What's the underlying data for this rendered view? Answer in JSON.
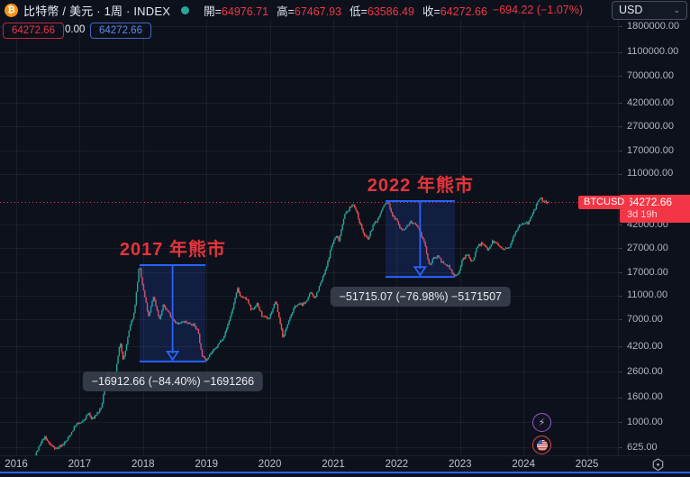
{
  "header": {
    "symbol_icon": "₿",
    "title": "比特幣 / 美元 · 1周 · INDEX",
    "ohlc": [
      {
        "label": "開",
        "value": "64976.71"
      },
      {
        "label": "高",
        "value": "67467.93"
      },
      {
        "label": "低",
        "value": "63586.49"
      },
      {
        "label": "收",
        "value": "64272.66"
      }
    ],
    "change": "−694.22 (−1.07%)",
    "currency": "USD",
    "currency_chevron": "⌄"
  },
  "badges": {
    "red_price": "64272.66",
    "middle_value": "0.00",
    "blue_price": "64272.66"
  },
  "price_scale": {
    "tag_price": "64272.66",
    "tag_countdown": "3d 19h",
    "symbol_tag": "BTCUSD",
    "ticks": [
      1800000,
      1100000,
      700000,
      420000,
      270000,
      170000,
      110000,
      42000,
      27000,
      17000,
      11000,
      7000,
      4200,
      2600,
      1600,
      1000,
      625
    ]
  },
  "time_scale": {
    "years": [
      2016,
      2017,
      2018,
      2019,
      2020,
      2021,
      2022,
      2023,
      2024,
      2025
    ]
  },
  "chart_data": {
    "type": "candlestick",
    "symbol": "BTCUSD",
    "timeframe": "1W",
    "scale": "log",
    "current_price": 64272.66,
    "price_axis_range": [
      625,
      1800000
    ],
    "time_axis_range": [
      2016,
      2025.6
    ],
    "anchors": [
      [
        2016.0,
        430
      ],
      [
        2016.08,
        370
      ],
      [
        2016.2,
        415
      ],
      [
        2016.45,
        760
      ],
      [
        2016.55,
        650
      ],
      [
        2016.65,
        610
      ],
      [
        2016.8,
        700
      ],
      [
        2016.95,
        960
      ],
      [
        2017.05,
        1000
      ],
      [
        2017.15,
        1200
      ],
      [
        2017.2,
        1050
      ],
      [
        2017.35,
        1300
      ],
      [
        2017.45,
        2700
      ],
      [
        2017.54,
        1900
      ],
      [
        2017.65,
        4600
      ],
      [
        2017.7,
        3200
      ],
      [
        2017.8,
        6000
      ],
      [
        2017.87,
        8000
      ],
      [
        2017.95,
        19500
      ],
      [
        2018.0,
        13500
      ],
      [
        2018.1,
        7200
      ],
      [
        2018.17,
        11000
      ],
      [
        2018.27,
        7000
      ],
      [
        2018.33,
        9200
      ],
      [
        2018.45,
        7500
      ],
      [
        2018.55,
        6400
      ],
      [
        2018.65,
        6700
      ],
      [
        2018.8,
        6400
      ],
      [
        2018.88,
        5600
      ],
      [
        2018.93,
        3700
      ],
      [
        2018.99,
        3200
      ],
      [
        2019.05,
        3600
      ],
      [
        2019.15,
        4000
      ],
      [
        2019.3,
        5300
      ],
      [
        2019.42,
        8500
      ],
      [
        2019.5,
        12500
      ],
      [
        2019.55,
        10800
      ],
      [
        2019.65,
        10200
      ],
      [
        2019.72,
        8200
      ],
      [
        2019.8,
        9500
      ],
      [
        2019.9,
        7300
      ],
      [
        2020.0,
        7200
      ],
      [
        2020.1,
        10000
      ],
      [
        2020.22,
        4900
      ],
      [
        2020.3,
        6900
      ],
      [
        2020.42,
        9200
      ],
      [
        2020.55,
        9400
      ],
      [
        2020.65,
        11500
      ],
      [
        2020.72,
        10600
      ],
      [
        2020.8,
        13500
      ],
      [
        2020.9,
        18500
      ],
      [
        2020.98,
        28000
      ],
      [
        2021.05,
        34000
      ],
      [
        2021.1,
        31500
      ],
      [
        2021.18,
        50000
      ],
      [
        2021.28,
        58500
      ],
      [
        2021.33,
        63000
      ],
      [
        2021.42,
        45000
      ],
      [
        2021.5,
        34000
      ],
      [
        2021.56,
        32000
      ],
      [
        2021.63,
        41000
      ],
      [
        2021.72,
        47500
      ],
      [
        2021.8,
        60000
      ],
      [
        2021.87,
        65000
      ],
      [
        2021.95,
        49000
      ],
      [
        2022.0,
        46500
      ],
      [
        2022.08,
        38000
      ],
      [
        2022.15,
        40000
      ],
      [
        2022.23,
        44500
      ],
      [
        2022.32,
        41000
      ],
      [
        2022.4,
        34500
      ],
      [
        2022.45,
        29500
      ],
      [
        2022.52,
        19500
      ],
      [
        2022.6,
        22500
      ],
      [
        2022.66,
        23500
      ],
      [
        2022.75,
        19800
      ],
      [
        2022.83,
        19200
      ],
      [
        2022.9,
        16200
      ],
      [
        2022.98,
        16700
      ],
      [
        2023.05,
        22000
      ],
      [
        2023.13,
        24000
      ],
      [
        2023.2,
        20500
      ],
      [
        2023.28,
        28200
      ],
      [
        2023.35,
        29500
      ],
      [
        2023.45,
        26500
      ],
      [
        2023.52,
        30800
      ],
      [
        2023.6,
        29200
      ],
      [
        2023.68,
        26000
      ],
      [
        2023.78,
        27200
      ],
      [
        2023.85,
        34500
      ],
      [
        2023.95,
        42500
      ],
      [
        2024.0,
        43500
      ],
      [
        2024.08,
        43000
      ],
      [
        2024.15,
        51500
      ],
      [
        2024.22,
        62000
      ],
      [
        2024.28,
        69000
      ],
      [
        2024.33,
        65500
      ],
      [
        2024.38,
        64272.66
      ]
    ],
    "measurements": [
      {
        "title": "2017 年熊市",
        "label": "−16912.66 (−84.40%) −1691266",
        "x1_year": 2017.95,
        "x2_year": 2018.99,
        "price_top": 20039,
        "price_bottom": 3126
      },
      {
        "title": "2022 年熊市",
        "label": "−51715.07 (−76.98%) −5171507",
        "x1_year": 2021.83,
        "x2_year": 2022.92,
        "price_top": 67180,
        "price_bottom": 15465
      }
    ],
    "colors": {
      "up": "#26a69a",
      "down": "#ef5350",
      "measure_blue": "#2962ff",
      "tag_red": "#f23645",
      "annotation_red": "#e5353b",
      "background": "#0d111c",
      "grid": "rgba(255,255,255,0.055)"
    }
  }
}
